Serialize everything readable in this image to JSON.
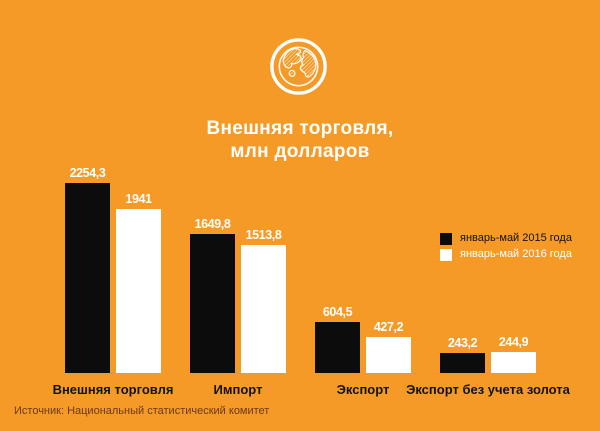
{
  "header": {
    "icon": "globe-icon"
  },
  "chart_data": {
    "type": "bar",
    "title": "Внешняя торговля, млн долларов",
    "title_lines": [
      "Внешняя торговля,",
      "млн долларов"
    ],
    "categories": [
      "Внешняя торговля",
      "Импорт",
      "Экспорт",
      "Экспорт без учета золота"
    ],
    "series": [
      {
        "key": "2015",
        "name": "январь-май 2015 года",
        "color": "#0C0C0C",
        "legend_text_color": "#121212",
        "values": [
          2254.3,
          1649.8,
          604.5,
          243.2
        ],
        "value_labels": [
          "2254,3",
          "1649,8",
          "604,5",
          "243,2"
        ]
      },
      {
        "key": "2016",
        "name": "январь-май 2016 года",
        "color": "#FFFFFF",
        "legend_text_color": "#FFFFFF",
        "values": [
          1941,
          1513.8,
          427.2,
          244.9
        ],
        "value_labels": [
          "1941",
          "1513,8",
          "427,2",
          "244,9"
        ]
      }
    ],
    "ylim": [
      0,
      2254.3
    ],
    "grid": false,
    "legend_position": "middle-right",
    "value_label_color": "#FFFFFF",
    "xlabel": "",
    "ylabel": ""
  },
  "source": {
    "label": "Источник: Национальный статистический комитет"
  },
  "colors": {
    "background": "#F59A26",
    "bar_2015": "#0C0C0C",
    "bar_2016": "#FFFFFF",
    "title_text": "#FFFFFF",
    "category_text": "#121212",
    "source_text": "#6D3A13"
  }
}
